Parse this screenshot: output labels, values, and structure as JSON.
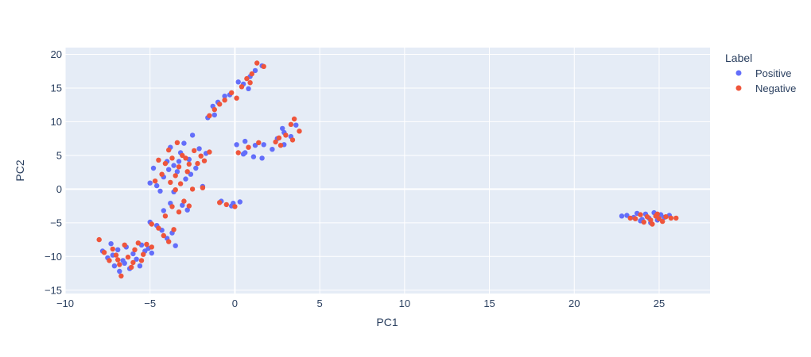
{
  "chart_data": {
    "type": "scatter",
    "xlabel": "PC1",
    "ylabel": "PC2",
    "xlim": [
      -10,
      28
    ],
    "ylim": [
      -15.5,
      21
    ],
    "grid": true,
    "legend_title": "Label",
    "legend_position": "top-right",
    "x_ticks": [
      -10,
      -5,
      0,
      5,
      10,
      15,
      20,
      25
    ],
    "x_tick_labels": [
      "−10",
      "−5",
      "0",
      "5",
      "10",
      "15",
      "20",
      "25"
    ],
    "y_ticks": [
      -15,
      -10,
      -5,
      0,
      5,
      10,
      15,
      20
    ],
    "y_tick_labels": [
      "−15",
      "−10",
      "−5",
      "0",
      "5",
      "10",
      "15",
      "20"
    ],
    "series": [
      {
        "name": "Positive",
        "color": "#636efa",
        "points": [
          [
            -7.8,
            -9.2
          ],
          [
            -7.5,
            -10.2
          ],
          [
            -7.3,
            -8.1
          ],
          [
            -7.1,
            -11.4
          ],
          [
            -6.9,
            -9.0
          ],
          [
            -6.8,
            -12.2
          ],
          [
            -6.6,
            -10.6
          ],
          [
            -6.4,
            -8.6
          ],
          [
            -6.2,
            -11.8
          ],
          [
            -6.0,
            -9.6
          ],
          [
            -5.8,
            -10.4
          ],
          [
            -5.5,
            -8.3
          ],
          [
            -5.3,
            -9.2
          ],
          [
            -5.1,
            -8.8
          ],
          [
            -4.9,
            -9.5
          ],
          [
            -5.6,
            -11.4
          ],
          [
            -7.2,
            -9.8
          ],
          [
            -6.5,
            -11.0
          ],
          [
            -5.0,
            -4.9
          ],
          [
            -4.6,
            -5.4
          ],
          [
            -4.3,
            -6.1
          ],
          [
            -4.0,
            -7.3
          ],
          [
            -3.7,
            -6.5
          ],
          [
            -3.5,
            -8.4
          ],
          [
            -4.2,
            -3.2
          ],
          [
            -3.8,
            -2.1
          ],
          [
            -3.1,
            -2.4
          ],
          [
            -2.8,
            -3.1
          ],
          [
            -5.0,
            0.9
          ],
          [
            -4.6,
            0.5
          ],
          [
            -4.2,
            1.8
          ],
          [
            -4.0,
            4.1
          ],
          [
            -3.8,
            6.2
          ],
          [
            -3.6,
            3.5
          ],
          [
            -3.4,
            2.6
          ],
          [
            -3.2,
            5.4
          ],
          [
            -3.0,
            6.8
          ],
          [
            -2.9,
            1.5
          ],
          [
            -2.7,
            4.4
          ],
          [
            -2.5,
            8.0
          ],
          [
            -2.3,
            3.1
          ],
          [
            -2.1,
            6.0
          ],
          [
            -1.9,
            0.4
          ],
          [
            -1.7,
            5.3
          ],
          [
            -4.8,
            3.1
          ],
          [
            -3.9,
            2.9
          ],
          [
            -3.3,
            4.1
          ],
          [
            -2.6,
            2.2
          ],
          [
            -3.6,
            -0.4
          ],
          [
            -4.4,
            -0.3
          ],
          [
            -1.6,
            10.6
          ],
          [
            -1.3,
            12.3
          ],
          [
            -1.0,
            12.9
          ],
          [
            -0.6,
            13.8
          ],
          [
            -0.3,
            14.0
          ],
          [
            -1.2,
            11.0
          ],
          [
            0.2,
            15.9
          ],
          [
            0.5,
            15.6
          ],
          [
            0.9,
            16.7
          ],
          [
            1.2,
            17.6
          ],
          [
            1.6,
            18.3
          ],
          [
            0.8,
            14.9
          ],
          [
            0.6,
            7.1
          ],
          [
            1.2,
            6.5
          ],
          [
            1.7,
            6.6
          ],
          [
            0.5,
            5.2
          ],
          [
            1.1,
            4.8
          ],
          [
            1.6,
            4.6
          ],
          [
            2.2,
            5.9
          ],
          [
            0.1,
            6.6
          ],
          [
            0.6,
            5.4
          ],
          [
            2.5,
            7.5
          ],
          [
            2.9,
            8.4
          ],
          [
            3.3,
            7.8
          ],
          [
            3.6,
            9.5
          ],
          [
            2.9,
            6.6
          ],
          [
            2.8,
            9.0
          ],
          [
            -0.8,
            -1.8
          ],
          [
            -0.2,
            -2.5
          ],
          [
            0.3,
            -1.9
          ],
          [
            -0.1,
            -2.1
          ],
          [
            22.8,
            -4.0
          ],
          [
            23.1,
            -3.9
          ],
          [
            23.5,
            -4.2
          ],
          [
            23.7,
            -3.6
          ],
          [
            24.0,
            -4.5
          ],
          [
            24.2,
            -3.7
          ],
          [
            24.5,
            -5.0
          ],
          [
            24.7,
            -3.5
          ],
          [
            24.9,
            -4.6
          ],
          [
            25.1,
            -3.8
          ],
          [
            25.3,
            -4.2
          ],
          [
            25.6,
            -3.9
          ],
          [
            23.9,
            -4.7
          ],
          [
            24.4,
            -4.3
          ]
        ]
      },
      {
        "name": "Negative",
        "color": "#ef553b",
        "points": [
          [
            -8.0,
            -7.5
          ],
          [
            -7.7,
            -9.4
          ],
          [
            -7.4,
            -10.6
          ],
          [
            -7.2,
            -8.9
          ],
          [
            -7.0,
            -9.8
          ],
          [
            -6.8,
            -11.2
          ],
          [
            -6.7,
            -12.9
          ],
          [
            -6.5,
            -8.3
          ],
          [
            -6.3,
            -10.1
          ],
          [
            -6.1,
            -11.6
          ],
          [
            -5.9,
            -9.0
          ],
          [
            -5.7,
            -8.0
          ],
          [
            -5.4,
            -9.7
          ],
          [
            -5.2,
            -8.2
          ],
          [
            -4.9,
            -8.6
          ],
          [
            -6.9,
            -10.5
          ],
          [
            -6.0,
            -10.9
          ],
          [
            -5.5,
            -10.6
          ],
          [
            -4.9,
            -5.2
          ],
          [
            -4.5,
            -5.8
          ],
          [
            -4.2,
            -6.9
          ],
          [
            -3.9,
            -7.8
          ],
          [
            -3.6,
            -6.0
          ],
          [
            -4.1,
            -4.0
          ],
          [
            -3.7,
            -2.6
          ],
          [
            -3.3,
            -3.4
          ],
          [
            -3.0,
            -1.8
          ],
          [
            -2.7,
            -2.5
          ],
          [
            -4.7,
            1.2
          ],
          [
            -4.3,
            2.2
          ],
          [
            -4.1,
            3.8
          ],
          [
            -3.9,
            5.8
          ],
          [
            -3.7,
            4.6
          ],
          [
            -3.5,
            2.0
          ],
          [
            -3.3,
            3.3
          ],
          [
            -3.1,
            5.0
          ],
          [
            -2.9,
            4.6
          ],
          [
            -2.7,
            3.7
          ],
          [
            -2.4,
            5.7
          ],
          [
            -2.2,
            3.8
          ],
          [
            -2.0,
            4.9
          ],
          [
            -1.8,
            4.2
          ],
          [
            -1.5,
            5.5
          ],
          [
            -3.8,
            1.0
          ],
          [
            -3.2,
            0.8
          ],
          [
            -2.8,
            2.6
          ],
          [
            -4.5,
            4.3
          ],
          [
            -3.4,
            6.9
          ],
          [
            -3.5,
            -0.1
          ],
          [
            -2.5,
            0.0
          ],
          [
            -1.9,
            0.2
          ],
          [
            -1.5,
            10.9
          ],
          [
            -1.2,
            11.8
          ],
          [
            -0.9,
            12.6
          ],
          [
            -0.6,
            13.2
          ],
          [
            -0.2,
            14.3
          ],
          [
            0.1,
            13.5
          ],
          [
            0.4,
            15.2
          ],
          [
            0.7,
            16.4
          ],
          [
            1.0,
            17.1
          ],
          [
            1.3,
            18.7
          ],
          [
            1.7,
            18.2
          ],
          [
            0.9,
            15.8
          ],
          [
            0.8,
            6.2
          ],
          [
            1.4,
            6.9
          ],
          [
            0.2,
            5.4
          ],
          [
            2.4,
            7.0
          ],
          [
            2.6,
            7.6
          ],
          [
            3.0,
            8.0
          ],
          [
            3.3,
            9.6
          ],
          [
            3.5,
            10.4
          ],
          [
            3.8,
            8.6
          ],
          [
            2.7,
            6.5
          ],
          [
            3.4,
            7.3
          ],
          [
            -0.5,
            -2.3
          ],
          [
            0.0,
            -2.6
          ],
          [
            -0.9,
            -2.0
          ],
          [
            23.3,
            -4.3
          ],
          [
            23.6,
            -4.4
          ],
          [
            23.9,
            -3.8
          ],
          [
            24.1,
            -4.9
          ],
          [
            24.3,
            -4.1
          ],
          [
            24.6,
            -5.2
          ],
          [
            24.8,
            -4.0
          ],
          [
            25.0,
            -4.4
          ],
          [
            25.2,
            -4.8
          ],
          [
            25.4,
            -4.1
          ],
          [
            25.7,
            -4.3
          ],
          [
            26.0,
            -4.3
          ],
          [
            24.5,
            -4.6
          ],
          [
            24.9,
            -3.7
          ]
        ]
      }
    ]
  }
}
